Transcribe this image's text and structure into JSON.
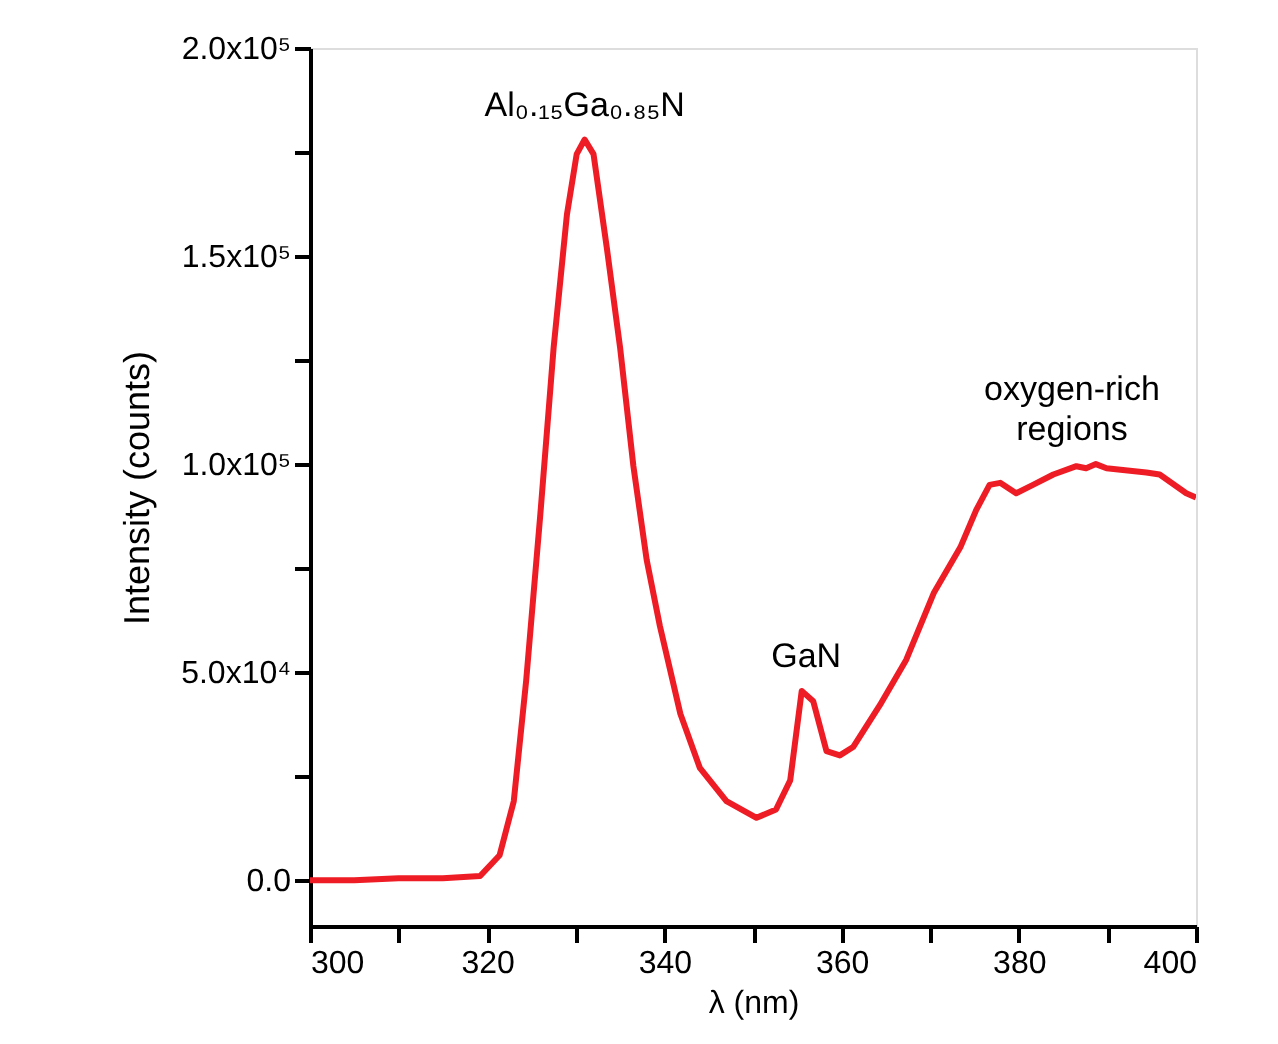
{
  "chart_data": {
    "type": "line",
    "xlabel": "λ (nm)",
    "ylabel": "Intensity  (counts)",
    "x": [
      300,
      305,
      310,
      315,
      319.2,
      321.4,
      323,
      324.4,
      326,
      327.5,
      329,
      330.1,
      331,
      332,
      333.5,
      335,
      336.5,
      338,
      339.5,
      341.8,
      344,
      347,
      350.4,
      352.6,
      354.2,
      355.5,
      356.8,
      358.3,
      359.8,
      361.3,
      364.3,
      367.3,
      370.4,
      373.4,
      375.2,
      376.7,
      377.9,
      379.7,
      381.6,
      383.9,
      386.5,
      387.6,
      388.7,
      389.9,
      394.4,
      395.9,
      398.9,
      400
    ],
    "series": [
      {
        "color": "#ee1c25",
        "values": [
          0,
          0,
          500,
          500,
          1000,
          6000,
          19000,
          48000,
          88000,
          128000,
          160000,
          174500,
          178000,
          174500,
          152000,
          128000,
          99500,
          77000,
          61000,
          40000,
          27000,
          19000,
          15000,
          17000,
          24000,
          45500,
          43000,
          31000,
          30000,
          32000,
          42000,
          53000,
          69000,
          80000,
          89000,
          95000,
          95500,
          93000,
          95000,
          97500,
          99500,
          99000,
          100000,
          99000,
          98000,
          97500,
          93000,
          92000
        ]
      }
    ],
    "xlim": [
      300,
      400
    ],
    "xticks": [
      300,
      {
        "value": 310,
        "label": null
      },
      320,
      {
        "value": 330,
        "label": null
      },
      340,
      {
        "value": 350,
        "label": null
      },
      360,
      {
        "value": 370,
        "label": null
      },
      380,
      {
        "value": 390,
        "label": null
      },
      400
    ],
    "ylim": [
      -11000,
      200000
    ],
    "yticks": [
      {
        "value": 0,
        "label": "0.0"
      },
      {
        "value": 25000,
        "label": null
      },
      {
        "value": 50000,
        "label": "5.0x10⁴"
      },
      {
        "value": 75000,
        "label": null
      },
      {
        "value": 100000,
        "label": "1.0x10⁵"
      },
      {
        "value": 125000,
        "label": null
      },
      {
        "value": 150000,
        "label": "1.5x10⁵"
      },
      {
        "value": 175000,
        "label": null
      },
      {
        "value": 200000,
        "label": "2.0x10⁵"
      }
    ],
    "annotations": [
      {
        "text": "Al₀.₁₅Ga₀.₈₅N",
        "x": 331,
        "y": 178000
      },
      {
        "text": "GaN",
        "x": 356,
        "y": 45500
      },
      {
        "text": "oxygen-rich\nregions",
        "x": 386,
        "y": 100000
      }
    ],
    "grid": false,
    "legend": false,
    "marker": "none",
    "line_style": "solid"
  }
}
